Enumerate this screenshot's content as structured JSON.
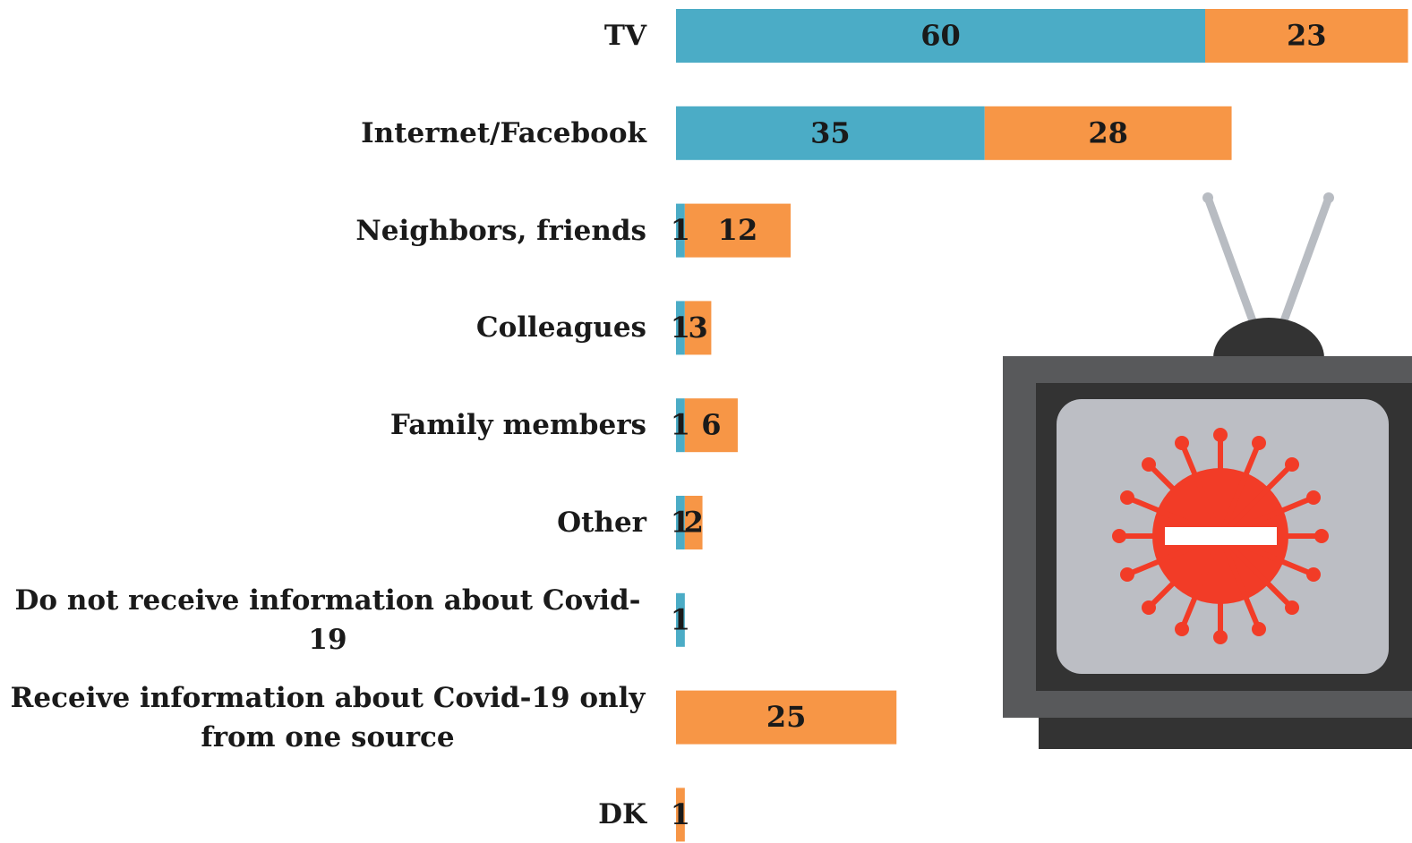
{
  "chart_data": {
    "type": "stacked-bar-horizontal",
    "categories": [
      "TV",
      "Internet/Facebook",
      "Neighbors, friends",
      "Colleagues",
      "Family members",
      "Other",
      "Do not receive information about Covid-19",
      "Receive information about Covid-19 only from one source",
      "DK"
    ],
    "series": [
      {
        "color": "#4bacc6",
        "values": [
          60,
          35,
          1,
          1,
          1,
          1,
          1,
          null,
          null
        ]
      },
      {
        "color": "#f79646",
        "values": [
          23,
          28,
          12,
          3,
          6,
          2,
          null,
          25,
          1
        ]
      }
    ]
  }
}
